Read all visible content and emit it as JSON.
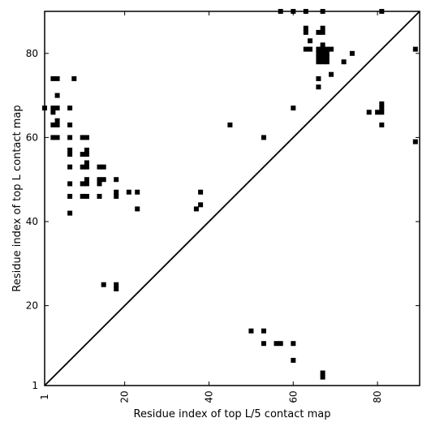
{
  "chart_data": {
    "type": "scatter",
    "xlabel": "Residue index of top L/5 contact map",
    "ylabel": "Residue index of top L contact map",
    "xlim": [
      1,
      90
    ],
    "ylim": [
      1,
      90
    ],
    "xticks": [
      1,
      20,
      40,
      60,
      80
    ],
    "yticks": [
      1,
      20,
      40,
      60,
      80
    ],
    "xtick_labels": [
      "1",
      "20",
      "40",
      "60",
      "80"
    ],
    "ytick_labels": [
      "1",
      "20",
      "40",
      "60",
      "80"
    ],
    "marker_color": "#000000",
    "line_color": "#000000",
    "diagonal": true,
    "grid": false,
    "series": [
      {
        "points": [
          [
            57,
            90
          ],
          [
            60,
            90
          ],
          [
            63,
            90
          ],
          [
            67,
            90
          ],
          [
            81,
            90
          ],
          [
            89,
            81
          ],
          [
            89,
            59
          ],
          [
            63,
            86
          ],
          [
            63,
            85
          ],
          [
            66,
            85
          ],
          [
            67,
            86
          ],
          [
            67,
            85
          ],
          [
            64,
            83
          ],
          [
            67,
            82
          ],
          [
            63,
            81
          ],
          [
            64,
            81
          ],
          [
            66,
            81
          ],
          [
            67,
            81
          ],
          [
            68,
            81
          ],
          [
            69,
            81
          ],
          [
            66,
            80
          ],
          [
            67,
            80
          ],
          [
            68,
            80
          ],
          [
            66,
            79
          ],
          [
            67,
            79
          ],
          [
            68,
            79
          ],
          [
            66,
            78
          ],
          [
            67,
            78
          ],
          [
            68,
            78
          ],
          [
            72,
            78
          ],
          [
            74,
            80
          ],
          [
            69,
            75
          ],
          [
            66,
            74
          ],
          [
            66,
            72
          ],
          [
            60,
            67
          ],
          [
            78,
            66
          ],
          [
            80,
            66
          ],
          [
            81,
            66
          ],
          [
            81,
            67
          ],
          [
            81,
            68
          ],
          [
            81,
            63
          ],
          [
            3,
            74
          ],
          [
            4,
            74
          ],
          [
            8,
            74
          ],
          [
            4,
            70
          ],
          [
            1,
            67
          ],
          [
            3,
            67
          ],
          [
            4,
            67
          ],
          [
            7,
            67
          ],
          [
            3,
            66
          ],
          [
            3,
            63
          ],
          [
            4,
            64
          ],
          [
            4,
            63
          ],
          [
            7,
            63
          ],
          [
            3,
            60
          ],
          [
            4,
            60
          ],
          [
            7,
            60
          ],
          [
            10,
            60
          ],
          [
            11,
            60
          ],
          [
            7,
            57
          ],
          [
            11,
            57
          ],
          [
            7,
            56
          ],
          [
            10,
            56
          ],
          [
            11,
            56
          ],
          [
            7,
            53
          ],
          [
            10,
            53
          ],
          [
            11,
            54
          ],
          [
            11,
            53
          ],
          [
            14,
            53
          ],
          [
            15,
            53
          ],
          [
            14,
            50
          ],
          [
            15,
            50
          ],
          [
            18,
            50
          ],
          [
            7,
            49
          ],
          [
            10,
            49
          ],
          [
            11,
            49
          ],
          [
            11,
            50
          ],
          [
            14,
            49
          ],
          [
            7,
            46
          ],
          [
            10,
            46
          ],
          [
            11,
            46
          ],
          [
            14,
            46
          ],
          [
            18,
            47
          ],
          [
            18,
            46
          ],
          [
            21,
            47
          ],
          [
            23,
            47
          ],
          [
            23,
            43
          ],
          [
            7,
            42
          ],
          [
            38,
            47
          ],
          [
            38,
            44
          ],
          [
            37,
            43
          ],
          [
            45,
            63
          ],
          [
            53,
            60
          ],
          [
            15,
            25
          ],
          [
            18,
            25
          ],
          [
            18,
            24
          ],
          [
            50,
            14
          ],
          [
            53,
            14
          ],
          [
            53,
            11
          ],
          [
            56,
            11
          ],
          [
            57,
            11
          ],
          [
            60,
            11
          ],
          [
            60,
            7
          ],
          [
            67,
            4
          ],
          [
            67,
            3
          ]
        ]
      }
    ]
  }
}
